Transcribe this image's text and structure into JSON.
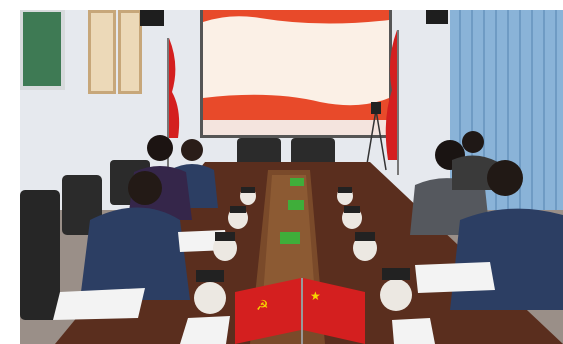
{
  "photo": {
    "description_free": true,
    "projection_screen": {
      "line1": "",
      "line2": "",
      "date_badge": ""
    },
    "colors": {
      "wall": "#e8ebef",
      "table": "#5a2e1e",
      "table_center": "#7a4a2a",
      "flag_red": "#d41f1f",
      "flag_gold": "#f6d400",
      "uniform": "#2c3e63",
      "curtain": "#8ab3d8"
    }
  }
}
